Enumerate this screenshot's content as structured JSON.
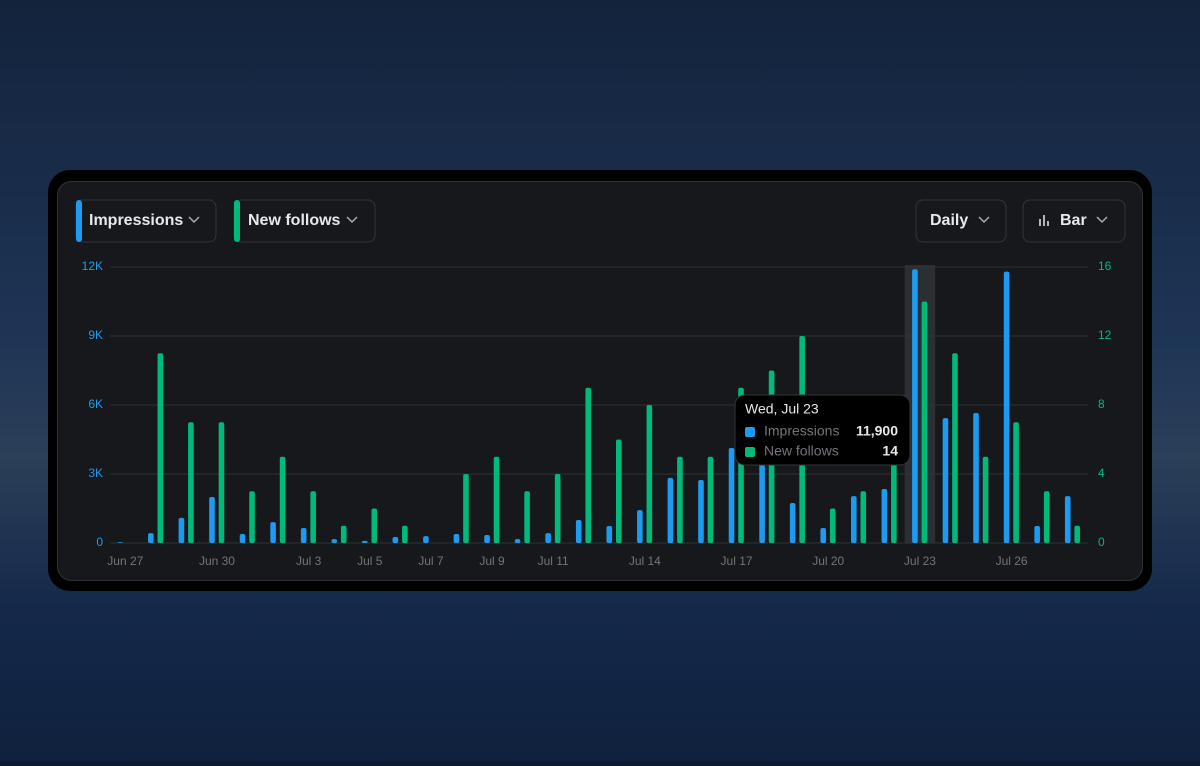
{
  "controls": {
    "interval": "Daily",
    "view": "Bar"
  },
  "chart_data": {
    "type": "bar",
    "categories": [
      "Jun 27",
      null,
      null,
      "Jun 30",
      null,
      null,
      "Jul 3",
      null,
      "Jul 5",
      null,
      "Jul 7",
      null,
      "Jul 9",
      null,
      "Jul 11",
      null,
      null,
      "Jul 14",
      null,
      null,
      "Jul 17",
      null,
      null,
      "Jul 20",
      null,
      null,
      "Jul 23",
      null,
      null,
      "Jul 26",
      null,
      null
    ],
    "series": [
      {
        "name": "Impressions",
        "color": "#1d9bf0",
        "values": [
          30,
          430,
          1090,
          2000,
          390,
          910,
          650,
          170,
          90,
          260,
          300,
          390,
          350,
          170,
          430,
          1000,
          740,
          1430,
          2830,
          2740,
          4130,
          4500,
          1740,
          650,
          2040,
          2350,
          11900,
          5430,
          5650,
          11800,
          740,
          2040
        ],
        "value_labels": [
          null,
          null,
          null,
          null,
          null,
          null,
          null,
          null,
          null,
          null,
          null,
          null,
          null,
          null,
          null,
          null,
          null,
          null,
          null,
          null,
          null,
          null,
          null,
          null,
          null,
          null,
          "11,900",
          null,
          null,
          null,
          null,
          null
        ]
      },
      {
        "name": "New follows",
        "color": "#00ba7c",
        "axis": "y2",
        "values": [
          0,
          11,
          7,
          7,
          3,
          5,
          3,
          1,
          2,
          1,
          0,
          4,
          5,
          3,
          4,
          9,
          6,
          8,
          5,
          5,
          9,
          10,
          12,
          2,
          3,
          5,
          14,
          11,
          5,
          7,
          3,
          1
        ]
      }
    ],
    "tooltip_title": "Wed, Jul 23",
    "ylim": [
      0,
      12000
    ],
    "yticks": [
      0,
      {
        "value": 3000,
        "label": "3K"
      },
      {
        "value": 6000,
        "label": "6K"
      },
      {
        "value": 9000,
        "label": "9K"
      },
      {
        "value": 12000,
        "label": "12K"
      }
    ],
    "y2lim": [
      0,
      16
    ],
    "y2ticks": [
      0,
      4,
      8,
      12,
      16
    ],
    "grid": true
  }
}
